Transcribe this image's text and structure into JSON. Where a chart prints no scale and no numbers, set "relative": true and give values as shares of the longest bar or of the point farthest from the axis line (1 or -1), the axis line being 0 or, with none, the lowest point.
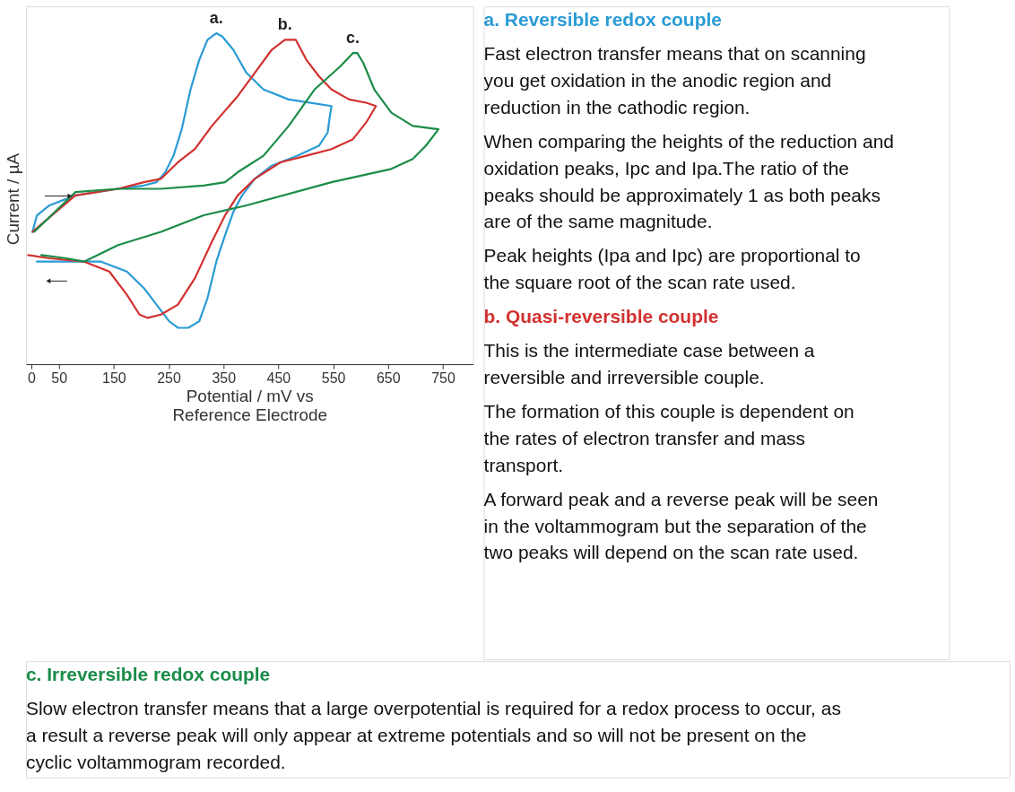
{
  "chart_data": {
    "type": "line",
    "relative": true,
    "xlabel": "Potential /  mV vs Reference Electrode",
    "ylabel": "Current / µA",
    "xlim": [
      -10,
      805
    ],
    "xticks": [
      0,
      50,
      150,
      250,
      350,
      450,
      550,
      650,
      750
    ],
    "grid": false,
    "legend": false,
    "marker": "none",
    "line_style": "solid",
    "series": [
      {
        "name": "a.",
        "color": "#2a9bd4",
        "x": [
          2,
          10,
          33,
          80,
          158,
          205,
          228,
          244,
          259,
          274,
          290,
          306,
          321,
          337,
          348,
          368,
          392,
          423,
          469,
          509,
          547,
          544,
          540,
          524,
          485,
          438,
          407,
          384,
          368,
          353,
          337,
          321,
          306,
          286,
          267,
          251,
          228,
          205,
          174,
          127,
          64,
          10
        ],
        "values": [
          0.4,
          0.45,
          0.48,
          0.51,
          0.53,
          0.54,
          0.55,
          0.58,
          0.63,
          0.71,
          0.83,
          0.92,
          0.98,
          1,
          0.99,
          0.95,
          0.88,
          0.83,
          0.8,
          0.79,
          0.78,
          0.75,
          0.7,
          0.66,
          0.63,
          0.6,
          0.56,
          0.51,
          0.46,
          0.39,
          0.31,
          0.2,
          0.13,
          0.11,
          0.11,
          0.13,
          0.18,
          0.23,
          0.28,
          0.31,
          0.31,
          0.31
        ]
      },
      {
        "name": "b.",
        "color": "#d2312f",
        "x": [
          2,
          80,
          158,
          205,
          236,
          267,
          298,
          329,
          376,
          407,
          438,
          462,
          469,
          482,
          501,
          524,
          547,
          579,
          610,
          628,
          610,
          586,
          547,
          501,
          454,
          407,
          376,
          353,
          329,
          298,
          267,
          236,
          212,
          197,
          174,
          142,
          96,
          33,
          -6
        ],
        "values": [
          0.4,
          0.51,
          0.53,
          0.55,
          0.56,
          0.61,
          0.65,
          0.72,
          0.81,
          0.88,
          0.95,
          0.98,
          0.98,
          0.98,
          0.92,
          0.87,
          0.83,
          0.8,
          0.79,
          0.78,
          0.73,
          0.68,
          0.65,
          0.63,
          0.61,
          0.56,
          0.51,
          0.45,
          0.37,
          0.26,
          0.18,
          0.15,
          0.14,
          0.15,
          0.21,
          0.28,
          0.31,
          0.32,
          0.33
        ]
      },
      {
        "name": "c.",
        "color": "#1b8c48",
        "x": [
          5,
          80,
          158,
          236,
          314,
          353,
          376,
          423,
          469,
          516,
          563,
          586,
          594,
          605,
          625,
          656,
          695,
          742,
          719,
          695,
          656,
          547,
          392,
          314,
          236,
          158,
          96,
          64,
          18
        ],
        "values": [
          0.4,
          0.52,
          0.53,
          0.53,
          0.54,
          0.55,
          0.58,
          0.63,
          0.72,
          0.83,
          0.9,
          0.94,
          0.94,
          0.91,
          0.83,
          0.76,
          0.72,
          0.71,
          0.66,
          0.62,
          0.59,
          0.55,
          0.48,
          0.45,
          0.4,
          0.36,
          0.31,
          0.32,
          0.33
        ]
      }
    ],
    "annotations": [
      "a. Reversible redox couple",
      "Fast electron transfer means that on scanning you get oxidation in the anodic region and reduction in the cathodic region.",
      "When comparing the heights of the reduction and oxidation peaks, Ipc and Ipa.The ratio of the peaks should be approximately 1 as both peaks are of the same magnitude.",
      "Peak heights (Ipa and Ipc) are proportional to the square root of the scan rate used.",
      "b. Quasi-reversible couple",
      "This is the intermediate case between a reversible and irreversible couple.",
      "The formation of this couple is dependent on the rates of electron transfer and mass transport.",
      "A forward peak and a reverse peak will be seen in the voltammogram but the separation of the two peaks will depend on the scan rate used.",
      "c. Irreversible redox couple",
      "Slow electron transfer means that a large overpotential is required for a redox process to occur, as a result a reverse peak will only appear at extreme potentials and so will not be present on the cyclic voltammogram recorded."
    ]
  }
}
